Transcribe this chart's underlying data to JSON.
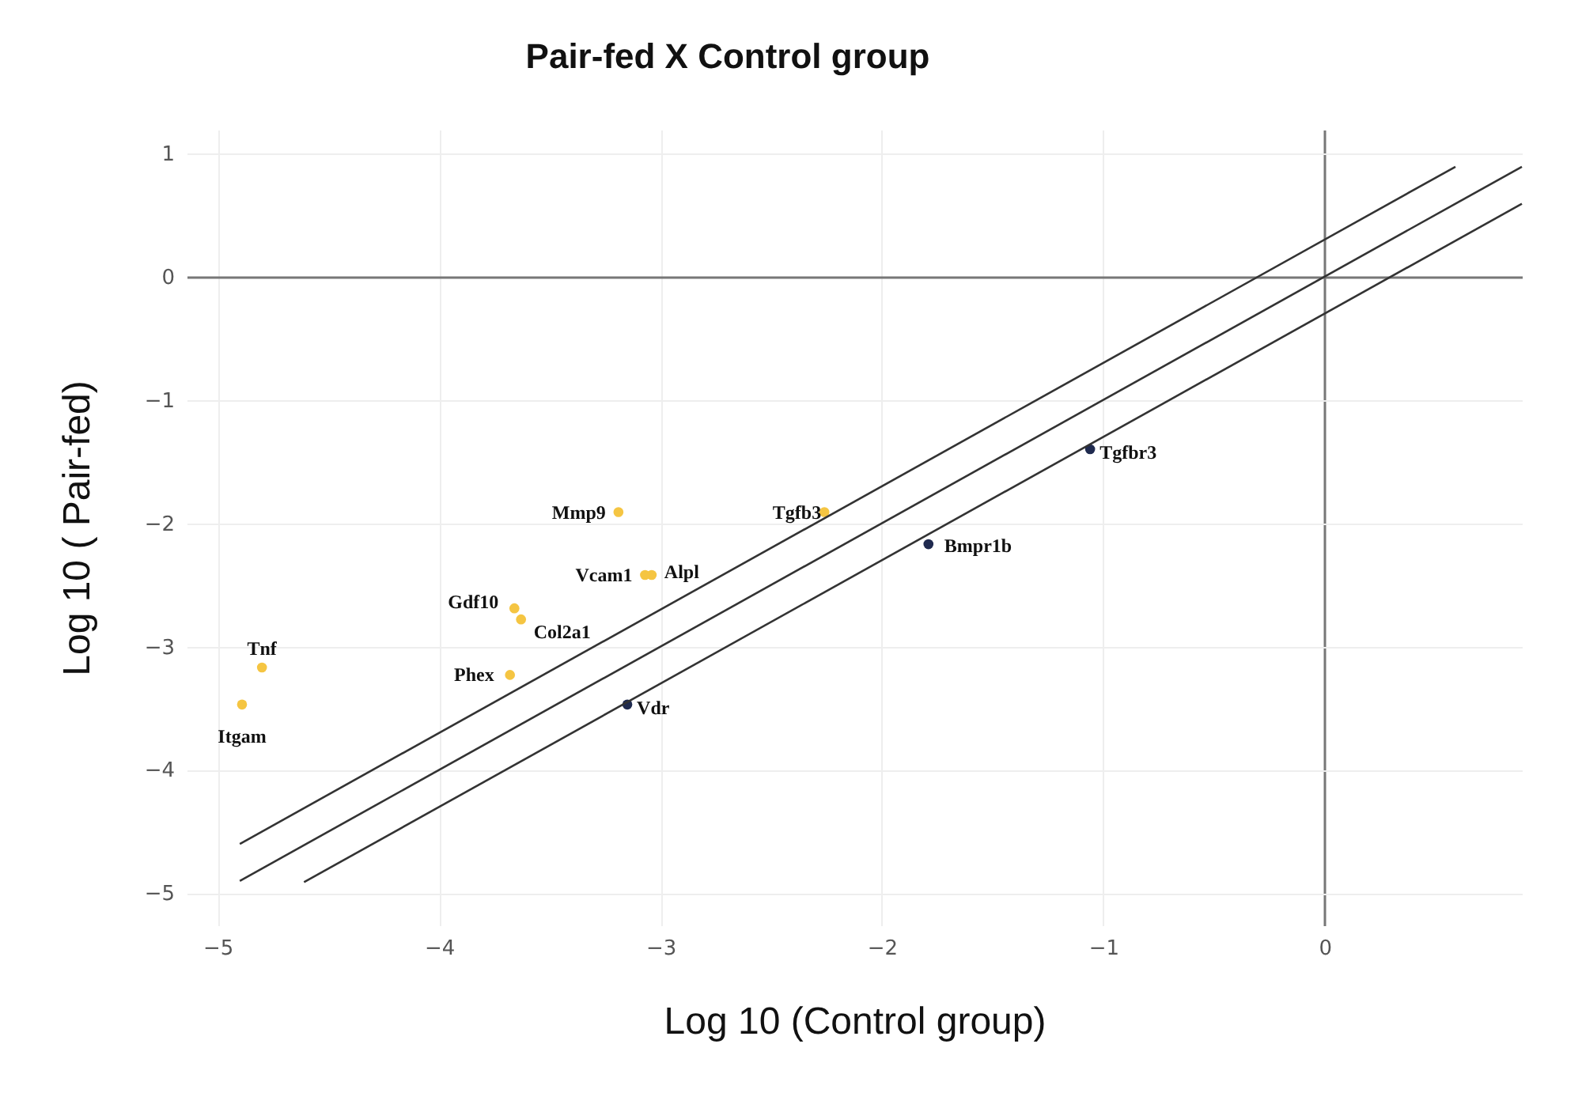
{
  "chart_data": {
    "type": "scatter",
    "title": "Pair-fed X Control group",
    "xlabel": "Log 10 (Control group)",
    "ylabel": "Log 10 ( Pair-fed)",
    "xlim": [
      -5.14,
      0.89
    ],
    "ylim": [
      -5.26,
      1.19
    ],
    "xticks": [
      -5,
      -4,
      -3,
      -2,
      -1,
      0
    ],
    "yticks": [
      -5,
      -4,
      -3,
      -2,
      -1,
      0,
      1
    ],
    "grid": true,
    "marker": "circle",
    "line_style": "solid",
    "series": [
      {
        "color": "#f5c542",
        "x": [
          -4.8,
          -4.89,
          -3.68,
          -3.66,
          -3.63,
          -3.19,
          -3.07,
          -3.04,
          -2.26
        ],
        "values": [
          -3.17,
          -3.47,
          -3.23,
          -2.69,
          -2.78,
          -1.91,
          -2.42,
          -2.42,
          -1.91
        ]
      },
      {
        "color": "#1f2a4f",
        "x": [
          -3.15,
          -1.79,
          -1.06
        ],
        "values": [
          -3.47,
          -2.17,
          -1.4
        ]
      },
      {
        "type": "line",
        "marker": "none",
        "color": "#333333",
        "x": [
          -4.9,
          0.59
        ],
        "values": [
          -4.6,
          0.89
        ]
      },
      {
        "type": "line",
        "marker": "none",
        "color": "#333333",
        "x": [
          -4.9,
          0.89
        ],
        "values": [
          -4.9,
          0.89
        ]
      },
      {
        "type": "line",
        "marker": "none",
        "color": "#333333",
        "x": [
          -4.61,
          0.89
        ],
        "values": [
          -4.91,
          0.59
        ]
      }
    ],
    "annotations": [
      {
        "text": "Tnf",
        "x": -4.8,
        "y": -3.17
      },
      {
        "text": "Itgam",
        "x": -4.89,
        "y": -3.47
      },
      {
        "text": "Phex",
        "x": -3.68,
        "y": -3.23
      },
      {
        "text": "Gdf10",
        "x": -3.66,
        "y": -2.69
      },
      {
        "text": "Col2a1",
        "x": -3.63,
        "y": -2.78
      },
      {
        "text": "Mmp9",
        "x": -3.19,
        "y": -1.91
      },
      {
        "text": "Vcam1",
        "x": -3.07,
        "y": -2.42
      },
      {
        "text": "Alpl",
        "x": -3.04,
        "y": -2.42
      },
      {
        "text": "Tgfb3",
        "x": -2.26,
        "y": -1.91
      },
      {
        "text": "Vdr",
        "x": -3.15,
        "y": -3.47
      },
      {
        "text": "Bmpr1b",
        "x": -1.79,
        "y": -2.17
      },
      {
        "text": "Tgfbr3",
        "x": -1.06,
        "y": -1.4
      }
    ]
  }
}
